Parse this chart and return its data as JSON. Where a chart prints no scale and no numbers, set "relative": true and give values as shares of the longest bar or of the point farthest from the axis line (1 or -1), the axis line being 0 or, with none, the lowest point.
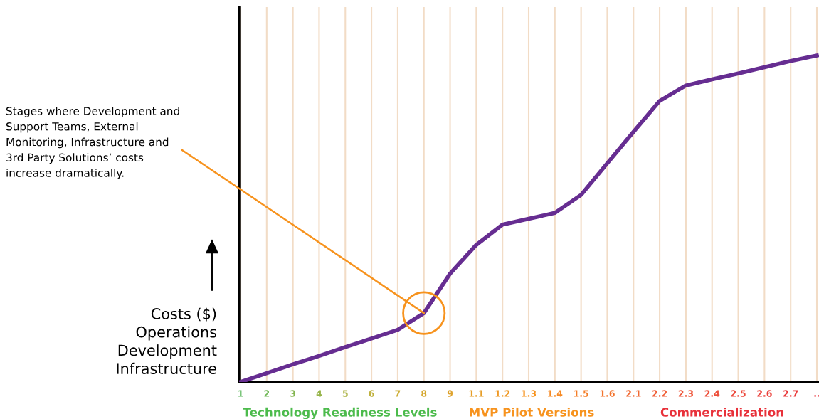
{
  "chart_data": {
    "type": "line",
    "relative": true,
    "grid": "x",
    "legend": false,
    "marker": "none",
    "line_style": "solid",
    "ylabel": "Costs ($)\nOperations\nDevelopment\nInfrastructure",
    "categories": [
      "1",
      "2",
      "3",
      "4",
      "5",
      "6",
      "7",
      "8",
      "9",
      "1.1",
      "1.2",
      "1.3",
      "1.4",
      "1.5",
      "1.6",
      "2.1",
      "2.2",
      "2.3",
      "2.4",
      "2.5",
      "2.6",
      "2.7",
      ".."
    ],
    "series": [
      {
        "color": "#662d91",
        "values": [
          0,
          0.027,
          0.054,
          0.08,
          0.107,
          0.133,
          0.16,
          0.211,
          0.332,
          0.42,
          0.482,
          0.5,
          0.518,
          0.573,
          0.67,
          0.766,
          0.861,
          0.908,
          0.927,
          0.945,
          0.964,
          0.983,
          1
        ]
      }
    ],
    "annotations": [
      {
        "text": "Stages where Development and\nSupport Teams, External\nMonitoring, Infrastructure and\n3rd Party Solutions’ costs\nincrease dramatically.",
        "x": "8",
        "y": 0.211
      },
      "Technology Readiness Levels",
      "MVP Pilot Versions",
      "Commercialization"
    ]
  }
}
